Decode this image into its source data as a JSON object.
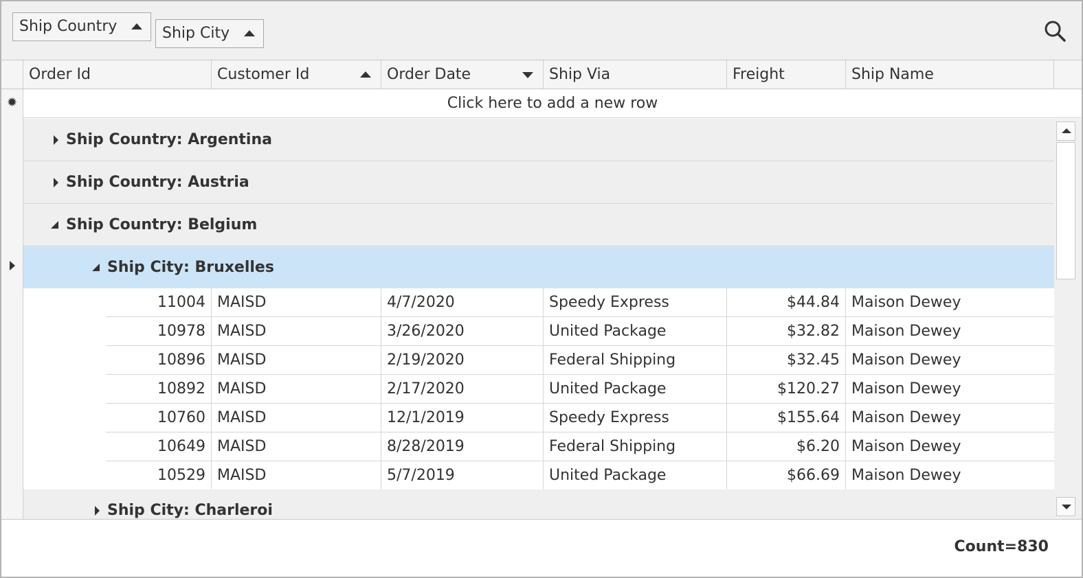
{
  "group_panel": {
    "chips": [
      {
        "label": "Ship Country",
        "sort": "ascending"
      },
      {
        "label": "Ship City",
        "sort": "ascending"
      }
    ],
    "search_icon": "search-icon"
  },
  "columns": [
    {
      "label": "Order Id",
      "sort": ""
    },
    {
      "label": "Customer Id",
      "sort": "ascending"
    },
    {
      "label": "Order Date",
      "sort": "descending"
    },
    {
      "label": "Ship Via",
      "sort": ""
    },
    {
      "label": "Freight",
      "sort": ""
    },
    {
      "label": "Ship Name",
      "sort": ""
    }
  ],
  "new_row": {
    "star_icon": "new-row-star-icon",
    "label": "Click here to add a new row"
  },
  "groups": [
    {
      "label": "Ship Country: Argentina",
      "expanded": false
    },
    {
      "label": "Ship Country: Austria",
      "expanded": false
    },
    {
      "label": "Ship Country: Belgium",
      "expanded": true
    },
    {
      "label": "Ship City: Bruxelles",
      "expanded": true,
      "selected": true
    },
    {
      "label": "Ship City: Charleroi",
      "expanded": false
    }
  ],
  "rows": [
    {
      "order_id": "11004",
      "customer_id": "MAISD",
      "order_date": "4/7/2020",
      "ship_via": "Speedy Express",
      "freight": "$44.84",
      "ship_name": "Maison Dewey"
    },
    {
      "order_id": "10978",
      "customer_id": "MAISD",
      "order_date": "3/26/2020",
      "ship_via": "United Package",
      "freight": "$32.82",
      "ship_name": "Maison Dewey"
    },
    {
      "order_id": "10896",
      "customer_id": "MAISD",
      "order_date": "2/19/2020",
      "ship_via": "Federal Shipping",
      "freight": "$32.45",
      "ship_name": "Maison Dewey"
    },
    {
      "order_id": "10892",
      "customer_id": "MAISD",
      "order_date": "2/17/2020",
      "ship_via": "United Package",
      "freight": "$120.27",
      "ship_name": "Maison Dewey"
    },
    {
      "order_id": "10760",
      "customer_id": "MAISD",
      "order_date": "12/1/2019",
      "ship_via": "Speedy Express",
      "freight": "$155.64",
      "ship_name": "Maison Dewey"
    },
    {
      "order_id": "10649",
      "customer_id": "MAISD",
      "order_date": "8/28/2019",
      "ship_via": "Federal Shipping",
      "freight": "$6.20",
      "ship_name": "Maison Dewey"
    },
    {
      "order_id": "10529",
      "customer_id": "MAISD",
      "order_date": "5/7/2019",
      "ship_via": "United Package",
      "freight": "$66.69",
      "ship_name": "Maison Dewey"
    }
  ],
  "footer": {
    "count": "Count=830"
  },
  "colors": {
    "selected_group": "#cce4f7",
    "group_background": "#efefef",
    "panel_background": "#f0f0f0"
  }
}
